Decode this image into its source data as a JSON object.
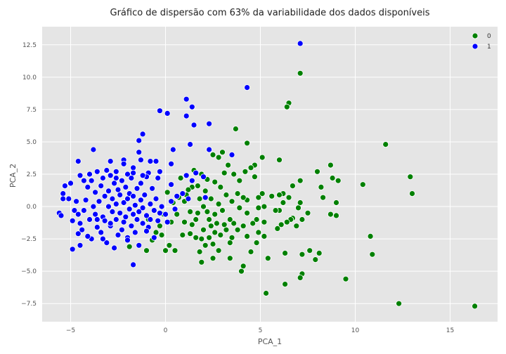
{
  "chart_data": {
    "type": "scatter",
    "title": "Gráfico de dispersão com 63% da variabilidade dos dados disponíveis",
    "xlabel": "PCA_1",
    "ylabel": "PCA_2",
    "xlim": [
      -6.5,
      17.5
    ],
    "ylim": [
      -8.9,
      13.9
    ],
    "xticks": [
      -5,
      0,
      5,
      10,
      15
    ],
    "yticks": [
      -7.5,
      -5.0,
      -2.5,
      0.0,
      2.5,
      5.0,
      7.5,
      10.0,
      12.5
    ],
    "xtick_labels": [
      "−5",
      "0",
      "5",
      "10",
      "15"
    ],
    "ytick_labels": [
      "−7.5",
      "−5.0",
      "−2.5",
      "0.0",
      "2.5",
      "5.0",
      "7.5",
      "10.0",
      "12.5"
    ],
    "grid": true,
    "background": "#e5e5e5",
    "legend_position": "top-right",
    "series": [
      {
        "name": "0",
        "color": "#008000",
        "points": [
          [
            16.3,
            -7.7
          ],
          [
            12.3,
            -7.5
          ],
          [
            13.0,
            1.0
          ],
          [
            12.9,
            2.3
          ],
          [
            11.6,
            4.8
          ],
          [
            10.9,
            -3.7
          ],
          [
            10.8,
            -2.3
          ],
          [
            10.4,
            1.7
          ],
          [
            9.5,
            -5.6
          ],
          [
            9.0,
            -0.7
          ],
          [
            9.0,
            0.3
          ],
          [
            9.1,
            2.0
          ],
          [
            8.8,
            2.2
          ],
          [
            8.7,
            -0.6
          ],
          [
            8.7,
            3.2
          ],
          [
            8.3,
            0.7
          ],
          [
            8.2,
            1.5
          ],
          [
            8.0,
            2.7
          ],
          [
            8.1,
            -3.6
          ],
          [
            7.9,
            -4.1
          ],
          [
            7.6,
            -3.4
          ],
          [
            7.5,
            -0.5
          ],
          [
            7.2,
            -1.0
          ],
          [
            7.2,
            -3.7
          ],
          [
            7.2,
            -5.2
          ],
          [
            7.1,
            -5.5
          ],
          [
            7.1,
            0.3
          ],
          [
            7.0,
            -0.1
          ],
          [
            7.1,
            2.0
          ],
          [
            7.1,
            10.3
          ],
          [
            6.9,
            -1.5
          ],
          [
            6.7,
            -0.9
          ],
          [
            6.7,
            1.6
          ],
          [
            6.6,
            -1.0
          ],
          [
            6.5,
            0.7
          ],
          [
            6.5,
            8.0
          ],
          [
            6.4,
            7.7
          ],
          [
            6.4,
            -1.2
          ],
          [
            6.3,
            -6.0
          ],
          [
            6.3,
            -3.6
          ],
          [
            6.2,
            0.3
          ],
          [
            6.2,
            1.0
          ],
          [
            6.1,
            -1.4
          ],
          [
            6.0,
            -0.3
          ],
          [
            6.0,
            0.9
          ],
          [
            6.0,
            3.6
          ],
          [
            5.9,
            -1.7
          ],
          [
            5.8,
            -0.3
          ],
          [
            5.6,
            0.8
          ],
          [
            5.4,
            -4.0
          ],
          [
            5.3,
            -6.7
          ],
          [
            5.2,
            -2.3
          ],
          [
            5.2,
            -1.2
          ],
          [
            5.2,
            0.0
          ],
          [
            5.1,
            1.0
          ],
          [
            5.1,
            3.8
          ],
          [
            4.9,
            -0.1
          ],
          [
            4.9,
            -2.0
          ],
          [
            4.8,
            -1.0
          ],
          [
            4.9,
            0.7
          ],
          [
            4.8,
            -2.8
          ],
          [
            4.7,
            2.3
          ],
          [
            4.7,
            3.2
          ],
          [
            4.6,
            -1.3
          ],
          [
            4.5,
            -3.5
          ],
          [
            4.5,
            3.0
          ],
          [
            4.3,
            -0.5
          ],
          [
            4.3,
            -2.3
          ],
          [
            4.3,
            0.5
          ],
          [
            4.3,
            4.9
          ],
          [
            4.2,
            2.7
          ],
          [
            4.1,
            -1.5
          ],
          [
            4.1,
            0.7
          ],
          [
            4.1,
            -4.6
          ],
          [
            4.0,
            -5.0
          ],
          [
            3.9,
            2.0
          ],
          [
            3.9,
            -0.1
          ],
          [
            3.8,
            -1.8
          ],
          [
            3.8,
            1.0
          ],
          [
            3.7,
            6.0
          ],
          [
            3.6,
            2.5
          ],
          [
            3.6,
            -1.3
          ],
          [
            3.5,
            -2.4
          ],
          [
            3.5,
            0.4
          ],
          [
            3.4,
            -1.0
          ],
          [
            3.4,
            -2.8
          ],
          [
            3.4,
            -4.0
          ],
          [
            3.3,
            3.2
          ],
          [
            3.2,
            -1.8
          ],
          [
            3.2,
            0.9
          ],
          [
            3.1,
            -1.4
          ],
          [
            3.1,
            2.6
          ],
          [
            3.0,
            4.2
          ],
          [
            3.0,
            -0.3
          ],
          [
            2.9,
            -2.2
          ],
          [
            2.9,
            1.5
          ],
          [
            2.8,
            -3.4
          ],
          [
            2.8,
            0.2
          ],
          [
            2.8,
            3.8
          ],
          [
            2.7,
            -1.3
          ],
          [
            2.6,
            -0.6
          ],
          [
            2.6,
            -2.0
          ],
          [
            2.6,
            1.9
          ],
          [
            2.5,
            -2.9
          ],
          [
            2.5,
            -4.0
          ],
          [
            2.5,
            4.0
          ],
          [
            2.4,
            -1.5
          ],
          [
            2.4,
            0.6
          ],
          [
            2.3,
            -1.0
          ],
          [
            2.3,
            -2.4
          ],
          [
            2.2,
            -0.4
          ],
          [
            2.2,
            2.1
          ],
          [
            2.1,
            -3.0
          ],
          [
            2.1,
            1.2
          ],
          [
            2.0,
            -1.8
          ],
          [
            2.0,
            0.0
          ],
          [
            1.9,
            -2.5
          ],
          [
            1.9,
            -4.3
          ],
          [
            1.9,
            2.5
          ],
          [
            1.8,
            -3.5
          ],
          [
            1.8,
            0.6
          ],
          [
            1.7,
            -0.5
          ],
          [
            1.7,
            1.6
          ],
          [
            1.6,
            -1.0
          ],
          [
            1.6,
            -2.4
          ],
          [
            1.5,
            2.8
          ],
          [
            1.4,
            1.5
          ],
          [
            1.4,
            -1.4
          ],
          [
            1.3,
            -2.1
          ],
          [
            1.3,
            -0.4
          ],
          [
            1.2,
            1.3
          ],
          [
            1.1,
            0.9
          ],
          [
            1.0,
            0.4
          ],
          [
            1.0,
            -1.2
          ],
          [
            0.9,
            -2.2
          ],
          [
            0.8,
            2.2
          ],
          [
            0.7,
            0.7
          ],
          [
            0.6,
            -0.6
          ],
          [
            0.5,
            -3.4
          ],
          [
            0.4,
            0.3
          ],
          [
            0.3,
            -1.2
          ],
          [
            0.2,
            -3.0
          ],
          [
            0.1,
            1.1
          ],
          [
            0.0,
            -3.4
          ],
          [
            -0.1,
            -0.6
          ],
          [
            -0.2,
            -2.2
          ],
          [
            -0.3,
            -1.5
          ],
          [
            -0.5,
            -2.0
          ],
          [
            -0.7,
            -2.6
          ],
          [
            -0.9,
            -1.0
          ],
          [
            -1.0,
            -3.4
          ],
          [
            -1.9,
            -3.1
          ]
        ]
      },
      {
        "name": "1",
        "color": "#0000ff",
        "points": [
          [
            7.1,
            12.6
          ],
          [
            4.3,
            9.2
          ],
          [
            1.1,
            8.3
          ],
          [
            1.4,
            7.7
          ],
          [
            1.1,
            7.0
          ],
          [
            -0.3,
            7.4
          ],
          [
            0.1,
            7.2
          ],
          [
            1.5,
            6.3
          ],
          [
            2.3,
            6.4
          ],
          [
            -1.2,
            5.6
          ],
          [
            -1.4,
            5.1
          ],
          [
            1.3,
            4.8
          ],
          [
            0.4,
            4.4
          ],
          [
            2.3,
            4.4
          ],
          [
            3.5,
            4.0
          ],
          [
            -3.8,
            4.4
          ],
          [
            -4.6,
            3.5
          ],
          [
            -2.9,
            3.5
          ],
          [
            -2.2,
            3.6
          ],
          [
            -0.5,
            3.5
          ],
          [
            -0.8,
            3.5
          ],
          [
            -1.4,
            4.2
          ],
          [
            -1.3,
            3.6
          ],
          [
            0.3,
            3.3
          ],
          [
            -2.2,
            3.3
          ],
          [
            -1.7,
            3.0
          ],
          [
            -3.1,
            2.8
          ],
          [
            -3.6,
            2.7
          ],
          [
            -4.0,
            2.5
          ],
          [
            -4.5,
            2.4
          ],
          [
            -0.3,
            2.7
          ],
          [
            -0.9,
            2.6
          ],
          [
            -1.7,
            2.6
          ],
          [
            -2.0,
            2.5
          ],
          [
            -2.6,
            2.2
          ],
          [
            -2.9,
            2.4
          ],
          [
            -3.3,
            2.2
          ],
          [
            -3.9,
            2.0
          ],
          [
            -4.3,
            2.0
          ],
          [
            -5.0,
            1.8
          ],
          [
            -5.3,
            1.6
          ],
          [
            -5.1,
            0.6
          ],
          [
            -5.4,
            1.0
          ],
          [
            -5.6,
            -0.5
          ],
          [
            -5.5,
            -0.7
          ],
          [
            -5.4,
            0.6
          ],
          [
            -4.9,
            -1.1
          ],
          [
            -4.8,
            -0.3
          ],
          [
            -4.7,
            0.4
          ],
          [
            -4.6,
            -0.6
          ],
          [
            -4.5,
            -1.3
          ],
          [
            -4.6,
            -2.1
          ],
          [
            -4.5,
            -3.0
          ],
          [
            -4.9,
            -3.3
          ],
          [
            -4.4,
            -1.8
          ],
          [
            -4.3,
            -0.3
          ],
          [
            -4.2,
            0.5
          ],
          [
            -4.1,
            1.5
          ],
          [
            -4.0,
            -1.0
          ],
          [
            -3.9,
            -2.5
          ],
          [
            -3.8,
            0.0
          ],
          [
            -3.7,
            -0.6
          ],
          [
            -3.7,
            1.1
          ],
          [
            -3.6,
            -1.6
          ],
          [
            -3.5,
            0.4
          ],
          [
            -3.4,
            -2.0
          ],
          [
            -3.4,
            1.6
          ],
          [
            -3.3,
            -0.8
          ],
          [
            -3.2,
            -1.1
          ],
          [
            -3.2,
            0.8
          ],
          [
            -3.1,
            -2.8
          ],
          [
            -3.0,
            0.0
          ],
          [
            -3.0,
            1.2
          ],
          [
            -2.9,
            -1.5
          ],
          [
            -2.8,
            -0.4
          ],
          [
            -2.8,
            0.6
          ],
          [
            -2.7,
            -3.2
          ],
          [
            -2.7,
            1.8
          ],
          [
            -2.6,
            -1.0
          ],
          [
            -2.6,
            0.2
          ],
          [
            -2.5,
            -2.2
          ],
          [
            -2.5,
            1.3
          ],
          [
            -2.4,
            -0.5
          ],
          [
            -2.4,
            0.9
          ],
          [
            -2.3,
            -1.8
          ],
          [
            -2.3,
            2.0
          ],
          [
            -2.2,
            -1.2
          ],
          [
            -2.2,
            0.3
          ],
          [
            -2.1,
            -0.8
          ],
          [
            -2.1,
            1.5
          ],
          [
            -2.0,
            -2.4
          ],
          [
            -2.0,
            0.6
          ],
          [
            -1.9,
            -0.2
          ],
          [
            -1.9,
            1.0
          ],
          [
            -1.8,
            -1.5
          ],
          [
            -1.8,
            2.2
          ],
          [
            -1.7,
            -0.6
          ],
          [
            -1.7,
            0.8
          ],
          [
            -1.6,
            -2.0
          ],
          [
            -1.6,
            0.1
          ],
          [
            -1.5,
            -1.0
          ],
          [
            -1.5,
            1.4
          ],
          [
            -1.4,
            -0.4
          ],
          [
            -1.4,
            -3.0
          ],
          [
            -1.3,
            0.5
          ],
          [
            -1.3,
            1.8
          ],
          [
            -1.2,
            -1.3
          ],
          [
            -1.2,
            -0.1
          ],
          [
            -1.1,
            0.9
          ],
          [
            -1.0,
            -0.7
          ],
          [
            -1.0,
            2.3
          ],
          [
            -0.9,
            -1.6
          ],
          [
            -0.8,
            0.2
          ],
          [
            -0.8,
            -1.0
          ],
          [
            -0.7,
            1.4
          ],
          [
            -0.6,
            -2.4
          ],
          [
            -0.6,
            -0.3
          ],
          [
            -0.5,
            0.6
          ],
          [
            -0.4,
            2.2
          ],
          [
            -0.4,
            -1.1
          ],
          [
            -0.3,
            -0.5
          ],
          [
            -0.2,
            0.0
          ],
          [
            0.0,
            -0.6
          ],
          [
            0.1,
            -1.2
          ],
          [
            0.3,
            0.4
          ],
          [
            0.3,
            1.7
          ],
          [
            0.5,
            -0.2
          ],
          [
            0.6,
            0.8
          ],
          [
            0.9,
            1.0
          ],
          [
            1.1,
            2.4
          ],
          [
            1.2,
            0.6
          ],
          [
            1.4,
            2.0
          ],
          [
            1.6,
            2.6
          ],
          [
            2.0,
            2.3
          ],
          [
            2.1,
            0.7
          ],
          [
            -1.7,
            -4.5
          ],
          [
            -2.9,
            -1.3
          ],
          [
            -3.6,
            -1.0
          ],
          [
            -4.1,
            -2.3
          ],
          [
            -2.0,
            -2.6
          ],
          [
            -3.3,
            -2.5
          ],
          [
            -2.6,
            2.7
          ],
          [
            -1.0,
            -1.9
          ],
          [
            -1.2,
            2.4
          ]
        ]
      }
    ]
  }
}
